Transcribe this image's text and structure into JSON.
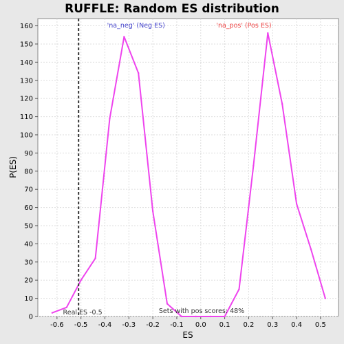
{
  "chart_data": {
    "type": "line",
    "title": "RUFFLE: Random ES distribution",
    "xlabel": "ES",
    "ylabel": "P(ES)",
    "xlim": [
      -0.68,
      0.575
    ],
    "ylim": [
      0,
      164
    ],
    "xticks": [
      -0.6,
      -0.5,
      -0.4,
      -0.3,
      -0.2,
      -0.1,
      0.0,
      0.1,
      0.2,
      0.3,
      0.4,
      0.5
    ],
    "xtick_labels": [
      "-0.6",
      "-0.5",
      "-0.4",
      "-0.3",
      "-0.2",
      "-0.1",
      "0.0",
      "0.1",
      "0.2",
      "0.3",
      "0.4",
      "0.5"
    ],
    "yticks": [
      0,
      10,
      20,
      30,
      40,
      50,
      60,
      70,
      80,
      90,
      100,
      110,
      120,
      130,
      140,
      150,
      160
    ],
    "grid": true,
    "series": [
      {
        "color": "#ee44ee",
        "x": [
          -0.62,
          -0.56,
          -0.5,
          -0.44,
          -0.38,
          -0.32,
          -0.26,
          -0.2,
          -0.14,
          -0.08,
          -0.02,
          0.04,
          0.1,
          0.16,
          0.22,
          0.28,
          0.34,
          0.4,
          0.46,
          0.52
        ],
        "y": [
          2,
          5,
          20,
          32,
          109,
          154,
          134,
          58,
          7,
          0,
          0,
          0,
          0,
          15,
          83,
          156,
          117,
          62,
          37,
          10
        ]
      }
    ],
    "reference_line": {
      "x": -0.51,
      "style": "dashed",
      "color": "#333333"
    },
    "annotations": {
      "neg": {
        "text": "'na_neg' (Neg ES)",
        "color": "#4444cc"
      },
      "pos": {
        "text": "'na_pos' (Pos ES)",
        "color": "#ee4444"
      },
      "real_es": {
        "text": "Real ES -0.5",
        "color": "#333333"
      },
      "pos_scores": {
        "text": "Sets with pos scores: 48%",
        "color": "#333333"
      }
    },
    "colors": {
      "background": "#e8e8e8",
      "plot_background": "#ffffff",
      "grid": "#dddddd"
    }
  }
}
